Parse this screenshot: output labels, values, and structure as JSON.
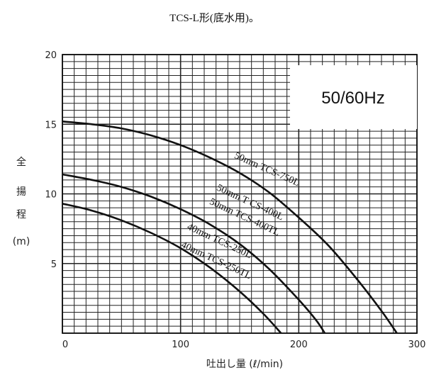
{
  "chart_data": {
    "type": "line",
    "title": "TCS-L形(底水用)。",
    "annotation": "50/60Hz",
    "xlabel": "吐出し量 (ℓ/min)",
    "ylabel": [
      "全",
      "揚",
      "程",
      "(m)"
    ],
    "xlim": [
      0,
      300
    ],
    "ylim": [
      0,
      20
    ],
    "x_ticks": [
      "0",
      "100",
      "200",
      "300"
    ],
    "y_ticks": [
      "5",
      "10",
      "15",
      "20"
    ],
    "grid": true,
    "series": [
      {
        "name": "50mm TCS-750L",
        "x": [
          0,
          25,
          50,
          75,
          100,
          125,
          150,
          175,
          200,
          225,
          250,
          270,
          283
        ],
        "y": [
          15.2,
          15.0,
          14.7,
          14.2,
          13.5,
          12.6,
          11.5,
          10.1,
          8.3,
          6.3,
          3.8,
          1.6,
          0
        ]
      },
      {
        "name": "50mm TCS-400L / 50mm TCS-400TL",
        "x": [
          0,
          25,
          50,
          75,
          100,
          125,
          150,
          175,
          200,
          215,
          222
        ],
        "y": [
          11.4,
          11.0,
          10.5,
          9.8,
          8.9,
          7.8,
          6.4,
          4.6,
          2.4,
          0.9,
          0
        ]
      },
      {
        "name": "40mm TCS-250L / 40mm TCS-250TL",
        "x": [
          0,
          25,
          50,
          75,
          100,
          125,
          150,
          170,
          185
        ],
        "y": [
          9.3,
          8.8,
          8.1,
          7.2,
          6.1,
          4.7,
          3.0,
          1.4,
          0
        ]
      }
    ],
    "curve_labels": [
      {
        "text": "50mm TCS-750L",
        "x": 145,
        "y": 12.6,
        "angle": 24
      },
      {
        "text": "50mm T CS-400L",
        "x": 130,
        "y": 10.3,
        "angle": 25
      },
      {
        "text": "50mm TCS-400TL",
        "x": 124,
        "y": 9.3,
        "angle": 25
      },
      {
        "text": "40mm TCS-250L",
        "x": 105,
        "y": 7.5,
        "angle": 25
      },
      {
        "text": "40mm TCS-250TL",
        "x": 100,
        "y": 6.2,
        "angle": 25
      }
    ]
  }
}
